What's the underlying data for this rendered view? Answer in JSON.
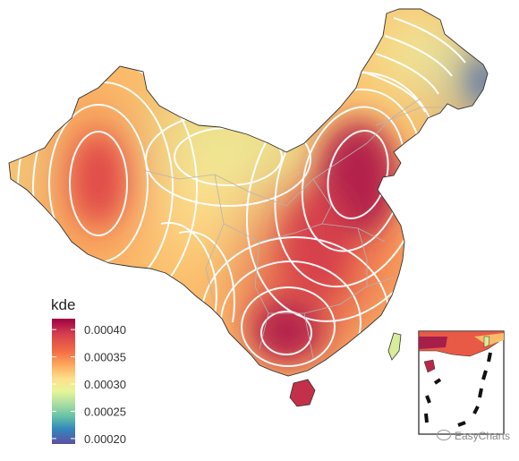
{
  "legend": {
    "title": "kde",
    "ticks": [
      "0.00040",
      "0.00035",
      "0.00030",
      "0.00025",
      "0.00020"
    ],
    "range": [
      0.00019,
      0.00042
    ],
    "tick_values": [
      0.0004,
      0.00035,
      0.0003,
      0.00025,
      0.0002
    ],
    "palette": [
      "#9e0142",
      "#d53e4f",
      "#f46d43",
      "#fdae61",
      "#fee08b",
      "#e6f598",
      "#abdda4",
      "#66c2a5",
      "#3288bd",
      "#5e4fa2"
    ]
  },
  "colors": {
    "contour": "#ffffff",
    "border": "#333333",
    "province_border": "#b4b4b4"
  },
  "watermark": "EasyCharts"
}
